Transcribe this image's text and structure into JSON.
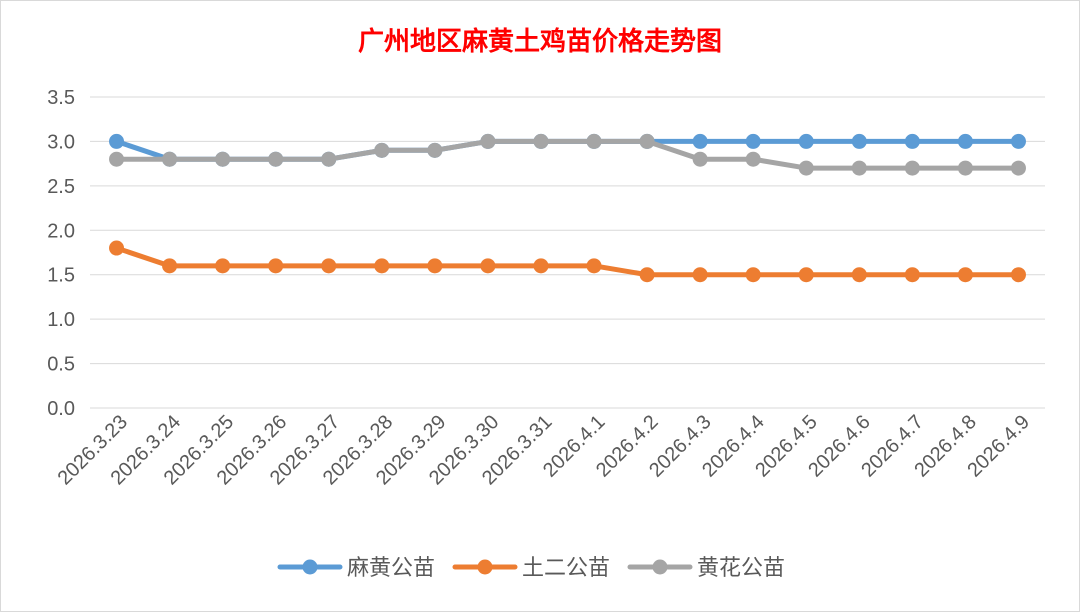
{
  "chart_data": {
    "type": "line",
    "title": "广州地区麻黄土鸡苗价格走势图",
    "title_color": "#ff0000",
    "categories": [
      "2026.3.23",
      "2026.3.24",
      "2026.3.25",
      "2026.3.26",
      "2026.3.27",
      "2026.3.28",
      "2026.3.29",
      "2026.3.30",
      "2026.3.31",
      "2026.4.1",
      "2026.4.2",
      "2026.4.3",
      "2026.4.4",
      "2026.4.5",
      "2026.4.6",
      "2026.4.7",
      "2026.4.8",
      "2026.4.9"
    ],
    "y_ticks": [
      "0.0",
      "0.5",
      "1.0",
      "1.5",
      "2.0",
      "2.5",
      "3.0",
      "3.5"
    ],
    "ylim": [
      0,
      3.5
    ],
    "grid": true,
    "legend_position": "bottom",
    "series": [
      {
        "name": "麻黄公苗",
        "color": "#5b9bd5",
        "values": [
          3.0,
          2.8,
          2.8,
          2.8,
          2.8,
          2.9,
          2.9,
          3.0,
          3.0,
          3.0,
          3.0,
          3.0,
          3.0,
          3.0,
          3.0,
          3.0,
          3.0,
          3.0
        ]
      },
      {
        "name": "土二公苗",
        "color": "#ed7d31",
        "values": [
          1.8,
          1.6,
          1.6,
          1.6,
          1.6,
          1.6,
          1.6,
          1.6,
          1.6,
          1.6,
          1.5,
          1.5,
          1.5,
          1.5,
          1.5,
          1.5,
          1.5,
          1.5
        ]
      },
      {
        "name": "黄花公苗",
        "color": "#a5a5a5",
        "values": [
          2.8,
          2.8,
          2.8,
          2.8,
          2.8,
          2.9,
          2.9,
          3.0,
          3.0,
          3.0,
          3.0,
          2.8,
          2.8,
          2.7,
          2.7,
          2.7,
          2.7,
          2.7
        ]
      }
    ]
  }
}
